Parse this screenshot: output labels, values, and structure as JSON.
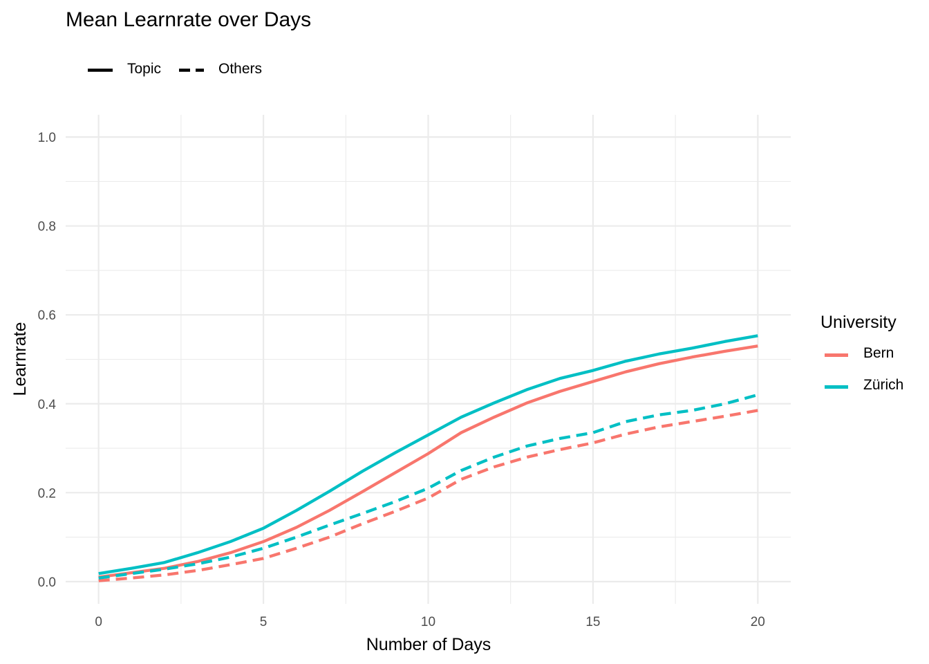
{
  "chart_data": {
    "type": "line",
    "title": "Mean Learnrate over Days",
    "xlabel": "Number of Days",
    "ylabel": "Learnrate",
    "xlim": [
      -1,
      21
    ],
    "ylim": [
      -0.05,
      1.05
    ],
    "xticks": [
      0,
      5,
      10,
      15,
      20
    ],
    "xtick_labels": [
      "0",
      "5",
      "10",
      "15",
      "20"
    ],
    "yticks": [
      0.0,
      0.2,
      0.4,
      0.6,
      0.8,
      1.0
    ],
    "ytick_labels": [
      "0.0",
      "0.2",
      "0.4",
      "0.6",
      "0.8",
      "1.0"
    ],
    "grid": true,
    "linetype_legend": {
      "position": "top-left",
      "items": [
        {
          "label": "Topic",
          "linetype": "solid"
        },
        {
          "label": "Others",
          "linetype": "dashed"
        }
      ]
    },
    "color_legend": {
      "title": "University",
      "position": "right",
      "items": [
        {
          "label": "Bern",
          "color": "#F8766D"
        },
        {
          "label": "Zürich",
          "color": "#00BFC4"
        }
      ]
    },
    "x": [
      0,
      1,
      2,
      3,
      4,
      5,
      6,
      7,
      8,
      9,
      10,
      11,
      12,
      13,
      14,
      15,
      16,
      17,
      18,
      19,
      20
    ],
    "series": [
      {
        "name": "Bern",
        "linetype": "solid",
        "color": "#F8766D",
        "values": [
          0.01,
          0.02,
          0.03,
          0.045,
          0.065,
          0.09,
          0.122,
          0.16,
          0.202,
          0.245,
          0.288,
          0.335,
          0.37,
          0.402,
          0.428,
          0.45,
          0.472,
          0.49,
          0.505,
          0.518,
          0.53
        ]
      },
      {
        "name": "Zürich",
        "linetype": "solid",
        "color": "#00BFC4",
        "values": [
          0.018,
          0.03,
          0.043,
          0.065,
          0.09,
          0.12,
          0.16,
          0.203,
          0.248,
          0.29,
          0.33,
          0.37,
          0.402,
          0.432,
          0.457,
          0.475,
          0.496,
          0.512,
          0.525,
          0.54,
          0.553
        ]
      },
      {
        "name": "Bern",
        "linetype": "dashed",
        "color": "#F8766D",
        "values": [
          0.002,
          0.008,
          0.015,
          0.025,
          0.038,
          0.052,
          0.075,
          0.1,
          0.13,
          0.158,
          0.188,
          0.23,
          0.258,
          0.28,
          0.297,
          0.312,
          0.332,
          0.348,
          0.36,
          0.372,
          0.385
        ]
      },
      {
        "name": "Zürich",
        "linetype": "dashed",
        "color": "#00BFC4",
        "values": [
          0.008,
          0.018,
          0.028,
          0.04,
          0.055,
          0.075,
          0.1,
          0.127,
          0.153,
          0.18,
          0.21,
          0.25,
          0.28,
          0.305,
          0.322,
          0.335,
          0.36,
          0.375,
          0.385,
          0.4,
          0.42
        ]
      }
    ]
  }
}
